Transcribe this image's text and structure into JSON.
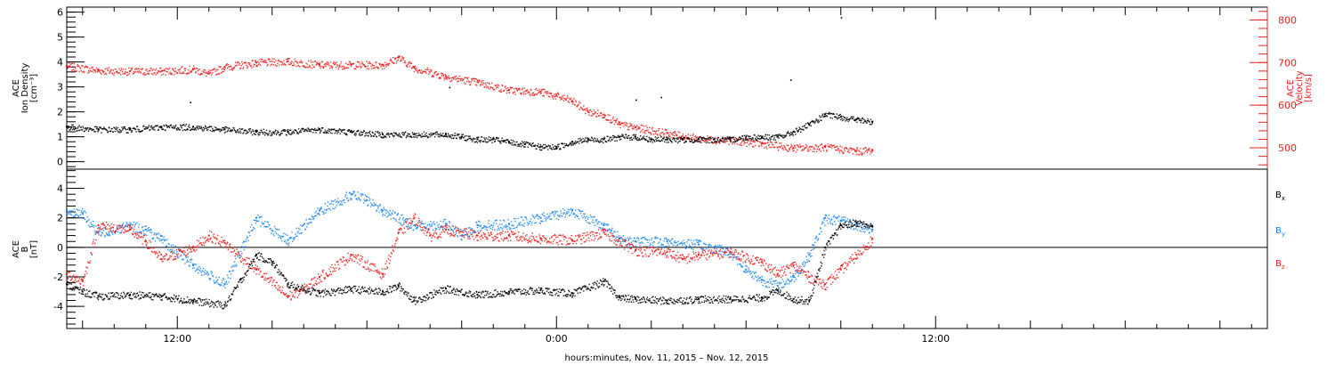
{
  "xlabel": "hours:minutes, Nov. 11, 2015 – Nov. 12, 2015",
  "x_range_hours": [
    8.5,
    46.5
  ],
  "x_ticks": [
    {
      "hour": 12,
      "label": "12:00"
    },
    {
      "hour": 24,
      "label": "0:00"
    },
    {
      "hour": 36,
      "label": "12:00"
    }
  ],
  "colors": {
    "black": "#000000",
    "red": "#e8201c",
    "blue": "#1c86ee",
    "frame": "#000000"
  },
  "top_panel": {
    "ylabel_lines": [
      "ACE",
      "Ion Density",
      "[cm⁻³]"
    ],
    "left_axis": {
      "min": -0.3,
      "max": 6.2,
      "ticks": [
        0,
        1,
        2,
        3,
        4,
        5,
        6
      ]
    },
    "right_axis": {
      "label_lines": [
        "ACE",
        "Velocity",
        "[km/s]"
      ],
      "min": 450,
      "max": 830,
      "ticks": [
        500,
        600,
        700,
        800
      ]
    }
  },
  "bottom_panel": {
    "ylabel_lines": [
      "ACE",
      "B",
      "[nT]"
    ],
    "axis": {
      "min": -5.5,
      "max": 5.3,
      "ticks": [
        -4,
        -2,
        0,
        2,
        4
      ]
    },
    "legend": [
      {
        "label": "B",
        "sub": "x",
        "color": "#000000"
      },
      {
        "label": "B",
        "sub": "y",
        "color": "#1c86ee"
      },
      {
        "label": "B",
        "sub": "z",
        "color": "#e8201c"
      }
    ]
  },
  "chart_data": [
    {
      "type": "scatter",
      "title": "",
      "x_unit": "hours since Nov. 11, 2015 00:00",
      "xlabel": "hours:minutes, Nov. 11, 2015 – Nov. 12, 2015",
      "series": [
        {
          "name": "Ion Density",
          "axis": "left",
          "color": "#000000",
          "x": [
            8.5,
            9.5,
            10.5,
            11.5,
            12.5,
            13.5,
            14.5,
            15.5,
            16.5,
            17.5,
            18.5,
            19.5,
            20.5,
            21.0,
            21.5,
            22.0,
            22.5,
            23.0,
            23.5,
            24.0,
            24.5,
            25.0,
            25.5,
            26.0,
            26.5,
            27.0,
            27.5,
            28.0,
            28.5,
            29.0,
            29.5,
            30.0,
            30.5,
            31.0,
            31.5,
            32.0,
            32.5,
            33.0,
            33.5,
            34.0
          ],
          "y": [
            1.4,
            1.3,
            1.3,
            1.4,
            1.4,
            1.3,
            1.2,
            1.2,
            1.3,
            1.2,
            1.1,
            1.1,
            1.1,
            1.0,
            0.9,
            0.9,
            0.8,
            0.7,
            0.6,
            0.6,
            0.8,
            0.9,
            0.9,
            1.0,
            1.0,
            0.9,
            0.9,
            0.9,
            0.9,
            0.9,
            0.9,
            1.0,
            1.0,
            1.0,
            1.2,
            1.5,
            1.9,
            1.8,
            1.7,
            1.6
          ]
        },
        {
          "name": "Velocity",
          "axis": "right",
          "color": "#e8201c",
          "x": [
            8.5,
            9.5,
            10.5,
            11.5,
            12.5,
            13.0,
            13.5,
            14.5,
            15.5,
            16.5,
            17.5,
            18.5,
            19.0,
            19.5,
            20.5,
            21.5,
            22.5,
            23.5,
            24.0,
            24.5,
            25.0,
            25.5,
            26.0,
            26.5,
            27.5,
            28.5,
            29.5,
            30.5,
            31.5,
            32.5,
            33.5,
            34.0
          ],
          "y": [
            692,
            682,
            680,
            680,
            685,
            674,
            690,
            700,
            703,
            695,
            695,
            695,
            712,
            688,
            668,
            654,
            636,
            632,
            622,
            610,
            585,
            578,
            555,
            548,
            535,
            522,
            518,
            510,
            500,
            502,
            493,
            495
          ]
        }
      ],
      "left_ylabel": "ACE Ion Density [cm⁻³]",
      "right_ylabel": "ACE Velocity [km/s]",
      "ylim_left": [
        -0.3,
        6.2
      ],
      "ylim_right": [
        450,
        830
      ],
      "grid": false
    },
    {
      "type": "scatter",
      "title": "",
      "x_unit": "hours since Nov. 11, 2015 00:00",
      "xlabel": "hours:minutes, Nov. 11, 2015 – Nov. 12, 2015",
      "series": [
        {
          "name": "Bx",
          "color": "#000000",
          "x": [
            8.5,
            9.0,
            9.5,
            10.5,
            11.5,
            12.5,
            13.5,
            14.0,
            14.5,
            15.0,
            15.5,
            16.5,
            17.5,
            18.5,
            19.0,
            19.5,
            20.5,
            21.5,
            22.5,
            23.5,
            24.5,
            25.5,
            26.0,
            26.5,
            27.5,
            28.5,
            29.5,
            30.5,
            31.0,
            31.5,
            32.0,
            32.5,
            33.0,
            33.5,
            34.0
          ],
          "y": [
            -2.5,
            -3.0,
            -3.3,
            -3.2,
            -3.3,
            -3.6,
            -3.9,
            -2.2,
            -0.5,
            -1.0,
            -2.5,
            -3.1,
            -2.8,
            -3.0,
            -2.6,
            -3.6,
            -2.8,
            -3.2,
            -3.0,
            -2.9,
            -3.1,
            -2.3,
            -3.4,
            -3.5,
            -3.6,
            -3.5,
            -3.5,
            -3.4,
            -2.9,
            -3.5,
            -3.6,
            0.0,
            1.5,
            1.7,
            1.4
          ]
        },
        {
          "name": "By",
          "color": "#1c86ee",
          "x": [
            8.5,
            9.0,
            9.5,
            10.5,
            11.0,
            11.5,
            12.5,
            13.5,
            14.5,
            15.5,
            16.5,
            17.5,
            18.0,
            18.5,
            19.5,
            20.5,
            21.0,
            21.5,
            22.5,
            23.5,
            24.5,
            25.5,
            26.0,
            26.5,
            27.5,
            28.5,
            29.5,
            30.0,
            30.5,
            31.0,
            31.5,
            32.0,
            32.5,
            33.0,
            33.5,
            34.0
          ],
          "y": [
            2.5,
            2.3,
            1.0,
            1.5,
            1.2,
            0.5,
            -1.2,
            -2.5,
            2.0,
            0.5,
            2.5,
            3.6,
            3.2,
            2.5,
            1.5,
            1.6,
            0.8,
            1.5,
            1.6,
            2.0,
            2.5,
            1.5,
            0.6,
            0.4,
            0.4,
            0.2,
            -0.3,
            -1.5,
            -2.2,
            -2.6,
            -2.0,
            -0.5,
            2.0,
            1.8,
            1.5,
            1.2
          ]
        },
        {
          "name": "Bz",
          "color": "#e8201c",
          "x": [
            8.5,
            9.0,
            9.5,
            10.5,
            11.0,
            11.5,
            12.5,
            13.0,
            13.5,
            14.5,
            15.5,
            16.0,
            16.5,
            17.5,
            18.5,
            19.0,
            19.5,
            20.0,
            20.5,
            21.5,
            22.5,
            23.5,
            24.5,
            25.5,
            26.5,
            27.5,
            28.0,
            28.5,
            29.5,
            30.5,
            31.0,
            31.5,
            32.0,
            32.5,
            33.0,
            33.5,
            34.0
          ],
          "y": [
            -1.8,
            -2.3,
            1.5,
            1.2,
            0.4,
            -0.8,
            0.0,
            0.8,
            0.3,
            -1.5,
            -3.3,
            -2.8,
            -2.0,
            -0.5,
            -1.8,
            1.0,
            2.0,
            0.8,
            1.2,
            0.8,
            0.8,
            0.6,
            0.5,
            1.0,
            -0.2,
            -0.3,
            -0.8,
            -0.5,
            -0.3,
            -1.0,
            -1.8,
            -1.2,
            -2.0,
            -2.5,
            -1.5,
            -0.5,
            0.6
          ]
        }
      ],
      "ylabel": "ACE B [nT]",
      "ylim": [
        -5.5,
        5.3
      ],
      "grid": false
    }
  ]
}
